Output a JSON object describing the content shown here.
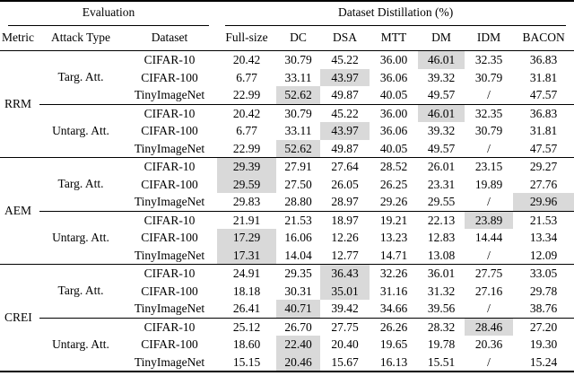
{
  "table": {
    "group_headers": [
      {
        "label": "Evaluation",
        "colspan": 3
      },
      {
        "label": "Dataset Distillation (%)",
        "colspan": 7
      }
    ],
    "columns": [
      "Metric",
      "Attack Type",
      "Dataset",
      "Full-size",
      "DC",
      "DSA",
      "MTT",
      "DM",
      "IDM",
      "BACON"
    ],
    "highlight_color": "#d9d9d9",
    "sections": [
      {
        "metric": "RRM",
        "blocks": [
          {
            "attack_type": "Targ. Att.",
            "rows": [
              {
                "dataset": "CIFAR-10",
                "values": [
                  "20.42",
                  "30.79",
                  "45.22",
                  "36.00",
                  "46.01",
                  "32.35",
                  "36.83"
                ],
                "highlight": 4
              },
              {
                "dataset": "CIFAR-100",
                "values": [
                  "6.77",
                  "33.11",
                  "43.97",
                  "36.06",
                  "39.32",
                  "30.79",
                  "31.81"
                ],
                "highlight": 2
              },
              {
                "dataset": "TinyImageNet",
                "values": [
                  "22.99",
                  "52.62",
                  "49.87",
                  "40.05",
                  "49.57",
                  "/",
                  "47.57"
                ],
                "highlight": 1
              }
            ]
          },
          {
            "attack_type": "Untarg. Att.",
            "rows": [
              {
                "dataset": "CIFAR-10",
                "values": [
                  "20.42",
                  "30.79",
                  "45.22",
                  "36.00",
                  "46.01",
                  "32.35",
                  "36.83"
                ],
                "highlight": 4
              },
              {
                "dataset": "CIFAR-100",
                "values": [
                  "6.77",
                  "33.11",
                  "43.97",
                  "36.06",
                  "39.32",
                  "30.79",
                  "31.81"
                ],
                "highlight": 2
              },
              {
                "dataset": "TinyImageNet",
                "values": [
                  "22.99",
                  "52.62",
                  "49.87",
                  "40.05",
                  "49.57",
                  "/",
                  "47.57"
                ],
                "highlight": 1
              }
            ]
          }
        ]
      },
      {
        "metric": "AEM",
        "blocks": [
          {
            "attack_type": "Targ. Att.",
            "rows": [
              {
                "dataset": "CIFAR-10",
                "values": [
                  "29.39",
                  "27.91",
                  "27.64",
                  "28.52",
                  "26.01",
                  "23.15",
                  "29.27"
                ],
                "highlight": 0
              },
              {
                "dataset": "CIFAR-100",
                "values": [
                  "29.59",
                  "27.50",
                  "26.05",
                  "26.25",
                  "23.31",
                  "19.89",
                  "27.76"
                ],
                "highlight": 0
              },
              {
                "dataset": "TinyImageNet",
                "values": [
                  "29.83",
                  "28.80",
                  "28.97",
                  "29.26",
                  "29.55",
                  "/",
                  "29.96"
                ],
                "highlight": 6
              }
            ]
          },
          {
            "attack_type": "Untarg. Att.",
            "rows": [
              {
                "dataset": "CIFAR-10",
                "values": [
                  "21.91",
                  "21.53",
                  "18.97",
                  "19.21",
                  "22.13",
                  "23.89",
                  "21.53"
                ],
                "highlight": 5
              },
              {
                "dataset": "CIFAR-100",
                "values": [
                  "17.29",
                  "16.06",
                  "12.26",
                  "13.23",
                  "12.83",
                  "14.44",
                  "13.34"
                ],
                "highlight": 0
              },
              {
                "dataset": "TinyImageNet",
                "values": [
                  "17.31",
                  "14.04",
                  "12.77",
                  "14.71",
                  "13.08",
                  "/",
                  "12.09"
                ],
                "highlight": 0
              }
            ]
          }
        ]
      },
      {
        "metric": "CREI",
        "blocks": [
          {
            "attack_type": "Targ. Att.",
            "rows": [
              {
                "dataset": "CIFAR-10",
                "values": [
                  "24.91",
                  "29.35",
                  "36.43",
                  "32.26",
                  "36.01",
                  "27.75",
                  "33.05"
                ],
                "highlight": 2
              },
              {
                "dataset": "CIFAR-100",
                "values": [
                  "18.18",
                  "30.31",
                  "35.01",
                  "31.16",
                  "31.32",
                  "27.16",
                  "29.78"
                ],
                "highlight": 2
              },
              {
                "dataset": "TinyImageNet",
                "values": [
                  "26.41",
                  "40.71",
                  "39.42",
                  "34.66",
                  "39.56",
                  "/",
                  "38.76"
                ],
                "highlight": 1
              }
            ]
          },
          {
            "attack_type": "Untarg. Att.",
            "rows": [
              {
                "dataset": "CIFAR-10",
                "values": [
                  "25.12",
                  "26.70",
                  "27.75",
                  "26.26",
                  "28.32",
                  "28.46",
                  "27.20"
                ],
                "highlight": 5
              },
              {
                "dataset": "CIFAR-100",
                "values": [
                  "18.60",
                  "22.40",
                  "20.40",
                  "19.65",
                  "19.78",
                  "20.36",
                  "19.30"
                ],
                "highlight": 1
              },
              {
                "dataset": "TinyImageNet",
                "values": [
                  "15.15",
                  "20.46",
                  "15.67",
                  "16.13",
                  "15.51",
                  "/",
                  "15.24"
                ],
                "highlight": 1
              }
            ]
          }
        ]
      }
    ]
  }
}
